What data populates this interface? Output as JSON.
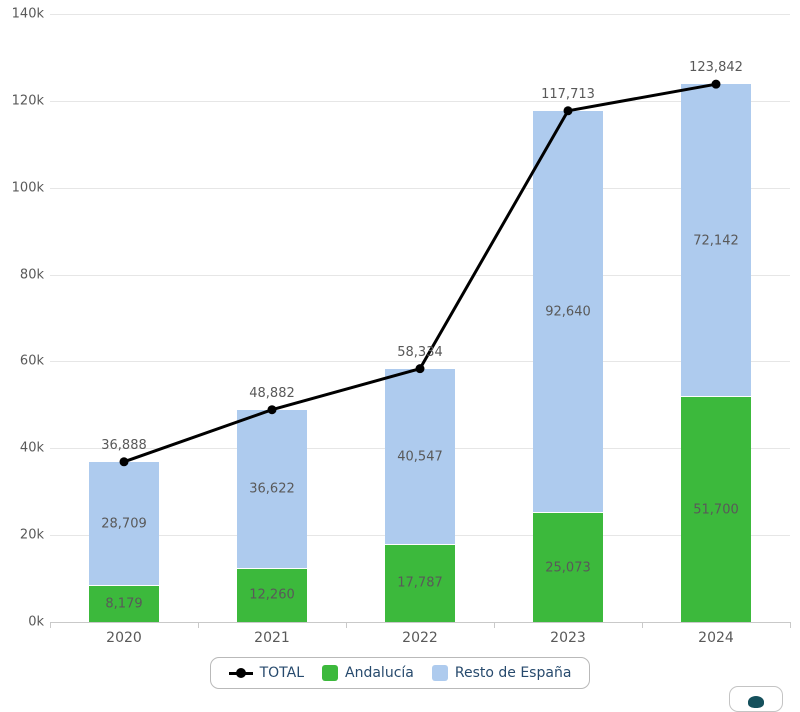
{
  "chart_data": {
    "type": "bar",
    "variant": "stacked-column-with-total-line",
    "categories": [
      "2020",
      "2021",
      "2022",
      "2023",
      "2024"
    ],
    "series": [
      {
        "name": "Andalucía",
        "color": "#3cb93c",
        "values": [
          8179,
          12260,
          17787,
          25073,
          51700
        ],
        "labels": [
          "8,179",
          "12,260",
          "17,787",
          "25,073",
          "51,700"
        ]
      },
      {
        "name": "Resto de España",
        "color": "#aecbee",
        "values": [
          28709,
          36622,
          40547,
          92640,
          72142
        ],
        "labels": [
          "28,709",
          "36,622",
          "40,547",
          "92,640",
          "72,142"
        ]
      }
    ],
    "line_series": {
      "name": "TOTAL",
      "color": "#000000",
      "values": [
        36888,
        48882,
        58334,
        117713,
        123842
      ],
      "labels": [
        "36,888",
        "48,882",
        "58,334",
        "117,713",
        "123,842"
      ]
    },
    "xlabel": "",
    "ylabel": "",
    "ylim": [
      0,
      140000
    ],
    "ytick_step": 20000,
    "ytick_labels": [
      "0k",
      "20k",
      "40k",
      "60k",
      "80k",
      "100k",
      "120k",
      "140k"
    ],
    "grid": true,
    "legend": {
      "position": "bottom",
      "items": [
        "TOTAL",
        "Andalucía",
        "Resto de España"
      ]
    },
    "style_colors": {
      "grid": "#e6e6e6",
      "axis": "#c9c9c9",
      "data_label": "#595959",
      "legend_text": "#274a6d"
    }
  }
}
